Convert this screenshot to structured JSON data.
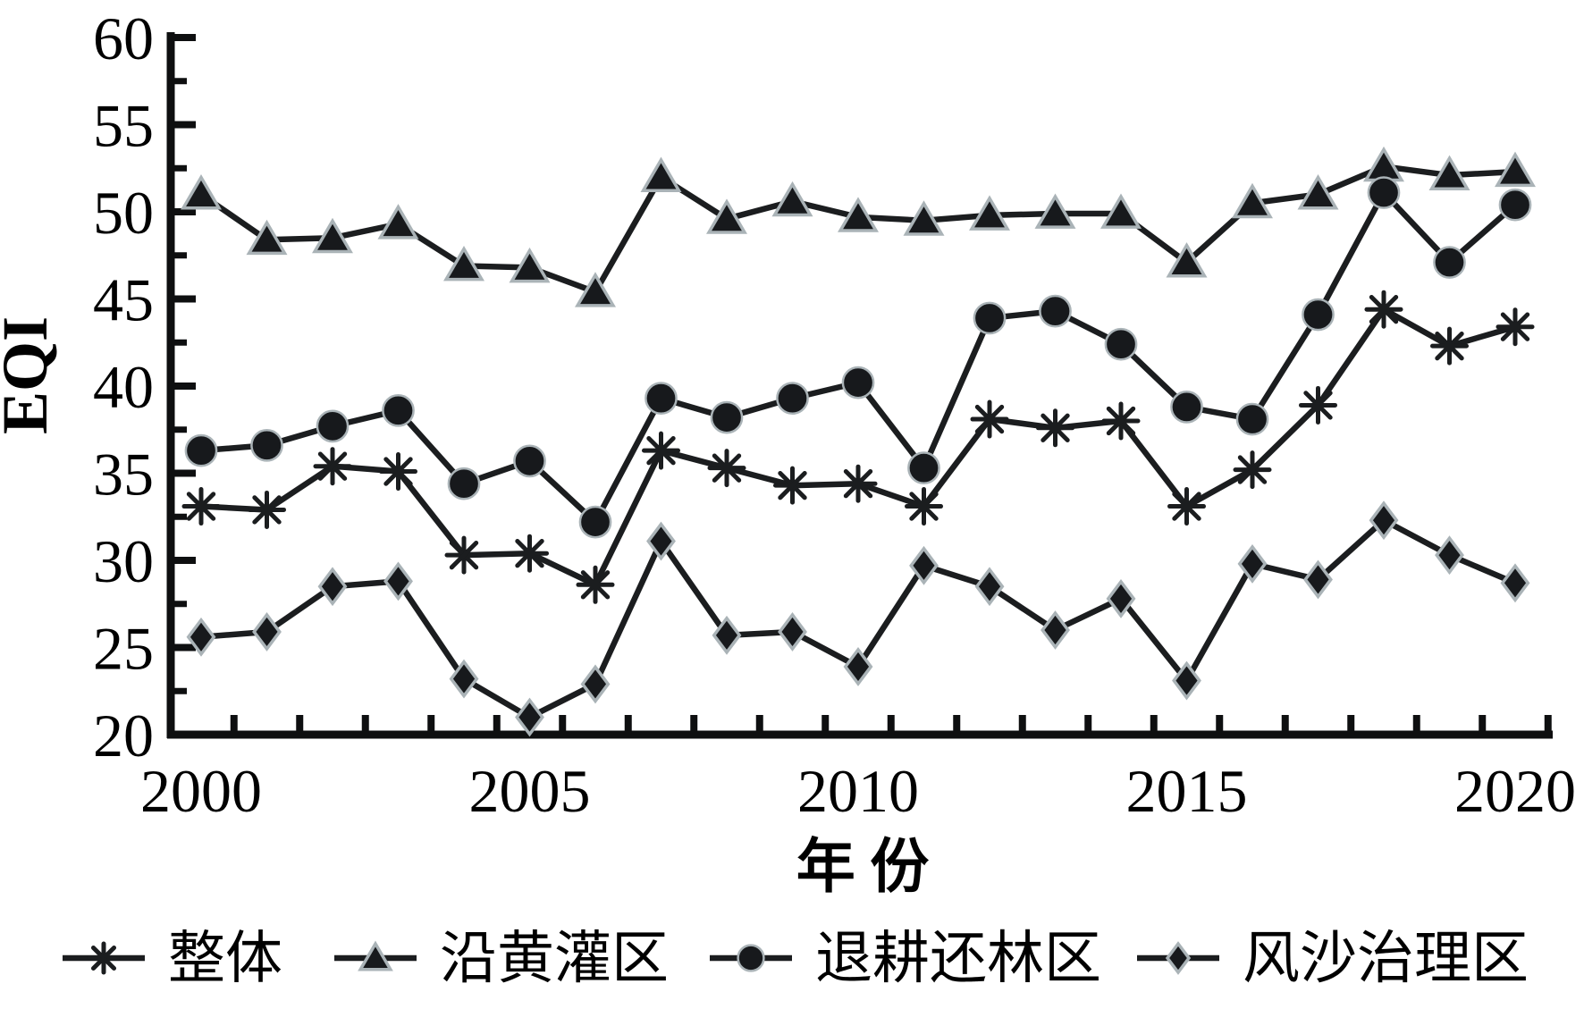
{
  "chart_data": {
    "type": "line",
    "title": "",
    "xlabel": "年 份",
    "ylabel": "EQI",
    "x": [
      2000,
      2001,
      2002,
      2003,
      2004,
      2005,
      2006,
      2007,
      2008,
      2009,
      2010,
      2011,
      2012,
      2013,
      2014,
      2015,
      2016,
      2017,
      2018,
      2019,
      2020
    ],
    "xtick_label_years": [
      2000,
      2005,
      2010,
      2015,
      2020
    ],
    "xtick_labels": [
      "2000",
      "2005",
      "2010",
      "2015",
      "2020"
    ],
    "ylim": [
      20,
      60
    ],
    "yticks": [
      20,
      25,
      30,
      35,
      40,
      45,
      50,
      55,
      60
    ],
    "y_minor_step": 2.5,
    "grid": false,
    "legend_position": "bottom",
    "series": [
      {
        "name": "整体",
        "marker": "asterisk",
        "values": [
          33.1,
          32.9,
          35.4,
          35.1,
          30.3,
          30.4,
          28.6,
          36.3,
          35.3,
          34.3,
          34.4,
          33.1,
          38.1,
          37.6,
          38.0,
          33.1,
          35.2,
          38.9,
          44.4,
          42.3,
          43.4
        ]
      },
      {
        "name": "沿黄灌区",
        "marker": "triangle",
        "values": [
          51.0,
          48.4,
          48.5,
          49.3,
          46.9,
          46.8,
          45.4,
          52.0,
          49.6,
          50.6,
          49.7,
          49.5,
          49.8,
          49.9,
          49.9,
          47.1,
          50.5,
          51.0,
          52.6,
          52.1,
          52.3
        ]
      },
      {
        "name": "退耕还林区",
        "marker": "circle",
        "values": [
          36.3,
          36.6,
          37.7,
          38.6,
          34.4,
          35.7,
          32.2,
          39.3,
          38.2,
          39.3,
          40.2,
          35.3,
          43.9,
          44.3,
          42.4,
          38.8,
          38.1,
          44.1,
          51.1,
          47.1,
          50.4
        ]
      },
      {
        "name": "风沙治理区",
        "marker": "diamond",
        "values": [
          25.6,
          25.9,
          28.5,
          28.8,
          23.2,
          21.0,
          22.9,
          31.1,
          25.7,
          25.9,
          23.9,
          29.7,
          28.5,
          26.0,
          27.8,
          23.1,
          29.8,
          28.9,
          32.3,
          30.3,
          28.7
        ]
      }
    ],
    "colors": {
      "line": "#1b1d1f",
      "marker_fill": "#17191c",
      "marker_edge": "#aab3b7",
      "text": "#000000"
    }
  }
}
